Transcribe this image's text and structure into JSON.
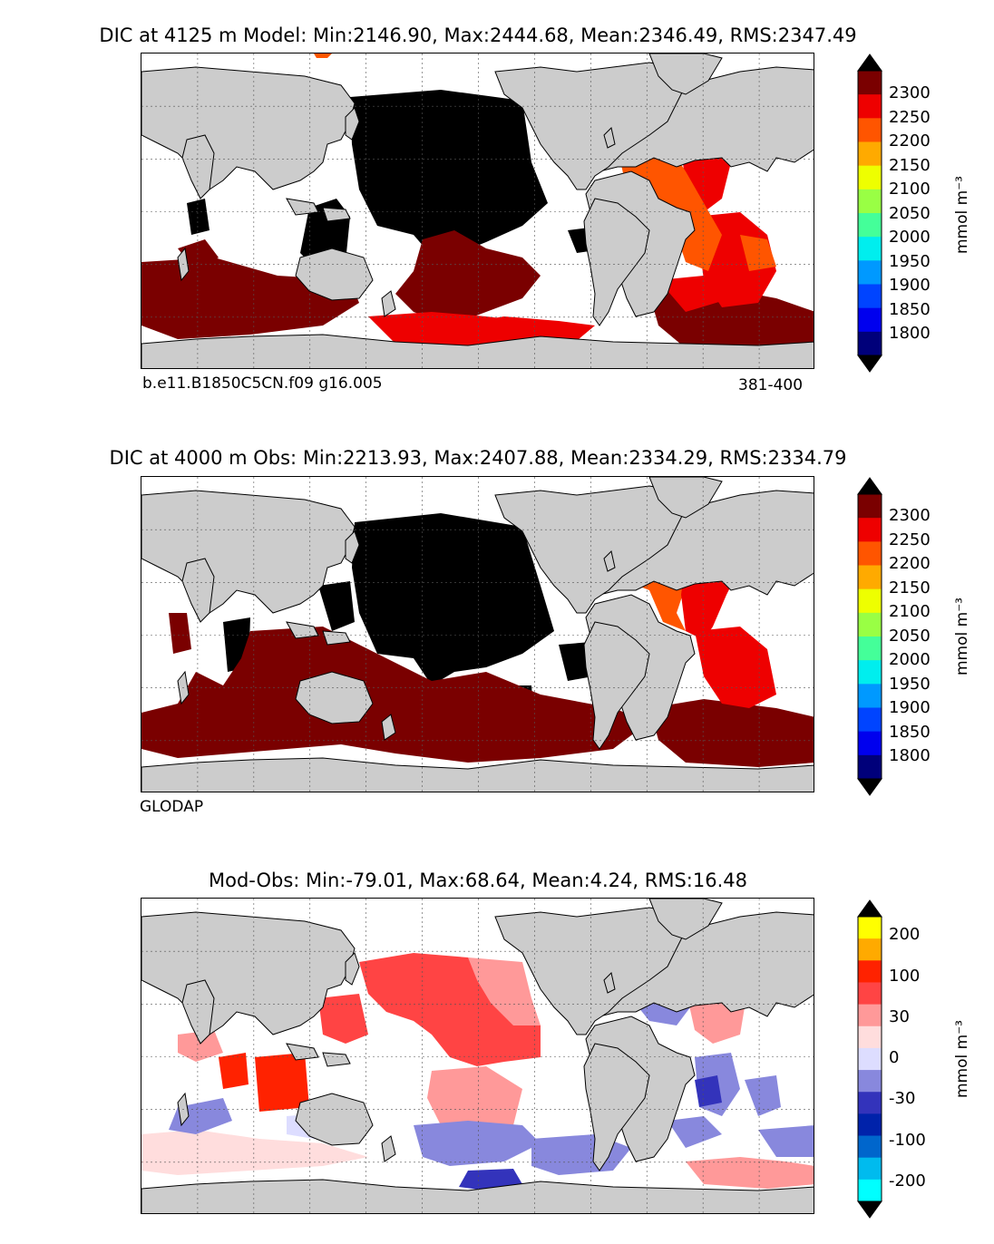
{
  "panels": [
    {
      "title": "DIC at 4125 m Model: Min:2146.90, Max:2444.68, Mean:2346.49, RMS:2347.49",
      "caption_left": "b.e11.B1850C5CN.f09 g16.005",
      "caption_right": "381-400",
      "colorbar": {
        "unit": "mmol m⁻³",
        "ticks": [
          "2300",
          "2250",
          "2200",
          "2150",
          "2100",
          "2050",
          "2000",
          "1950",
          "1900",
          "1850",
          "1800"
        ],
        "colors": [
          "#7a0000",
          "#ee0000",
          "#ff5500",
          "#ffaa00",
          "#eeff00",
          "#99ff44",
          "#44ff99",
          "#00eeee",
          "#0099ff",
          "#0044ff",
          "#0000ee",
          "#00007a"
        ],
        "over_color": "#000000",
        "under_color": "#000000"
      }
    },
    {
      "title": "DIC at 4000 m Obs: Min:2213.93, Max:2407.88, Mean:2334.29, RMS:2334.79",
      "caption_left": "GLODAP",
      "colorbar": {
        "unit": "mmol m⁻³",
        "ticks": [
          "2300",
          "2250",
          "2200",
          "2150",
          "2100",
          "2050",
          "2000",
          "1950",
          "1900",
          "1850",
          "1800"
        ],
        "colors": [
          "#7a0000",
          "#ee0000",
          "#ff5500",
          "#ffaa00",
          "#eeff00",
          "#99ff44",
          "#44ff99",
          "#00eeee",
          "#0099ff",
          "#0044ff",
          "#0000ee",
          "#00007a"
        ],
        "over_color": "#000000",
        "under_color": "#000000"
      }
    },
    {
      "title": "Mod-Obs: Min:-79.01, Max:68.64, Mean:4.24, RMS:16.48",
      "colorbar": {
        "unit": "mmol m⁻³",
        "ticks": [
          "200",
          "100",
          "30",
          "0",
          "-30",
          "-100",
          "-200"
        ],
        "colors": [
          "#ffff00",
          "#ffaa00",
          "#ff2200",
          "#ff4444",
          "#ff9999",
          "#ffdddd",
          "#ddddff",
          "#8888dd",
          "#3333bb",
          "#0022aa",
          "#0066cc",
          "#00bbee",
          "#00ffff"
        ],
        "over_color": "#000000",
        "under_color": "#000000"
      }
    }
  ],
  "colors": {
    "land": "#cccccc",
    "ocean_blank": "#ffffff",
    "coast": "#000000",
    "grid": "#555555"
  }
}
